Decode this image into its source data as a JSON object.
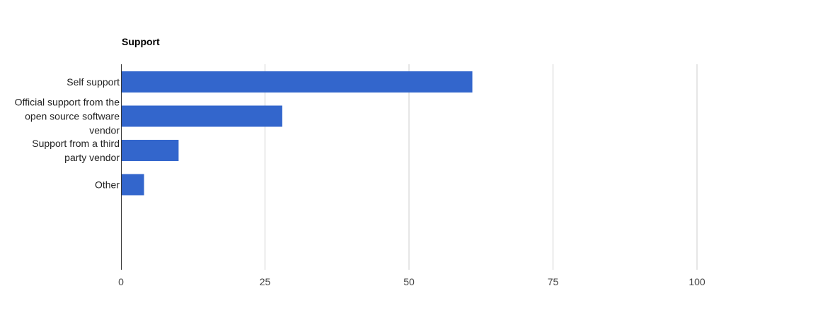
{
  "chart_data": {
    "type": "bar",
    "orientation": "horizontal",
    "title": "Support",
    "categories": [
      "Self support",
      "Official support from the open source software vendor",
      "Support from a third party vendor",
      "Other"
    ],
    "category_label_lines": [
      [
        "Self support"
      ],
      [
        "Official support from the",
        "open source software",
        "vendor"
      ],
      [
        "Support from a third",
        "party vendor"
      ],
      [
        "Other"
      ]
    ],
    "values": [
      61,
      28,
      10,
      4
    ],
    "xlim": [
      0,
      100
    ],
    "xticks": [
      "0",
      "25",
      "50",
      "75",
      "100"
    ],
    "xlabel": "",
    "ylabel": "",
    "grid": true,
    "legend": "none",
    "colors": {
      "bar": "#3366cc",
      "grid": "#cccccc",
      "axis": "#333333"
    }
  }
}
